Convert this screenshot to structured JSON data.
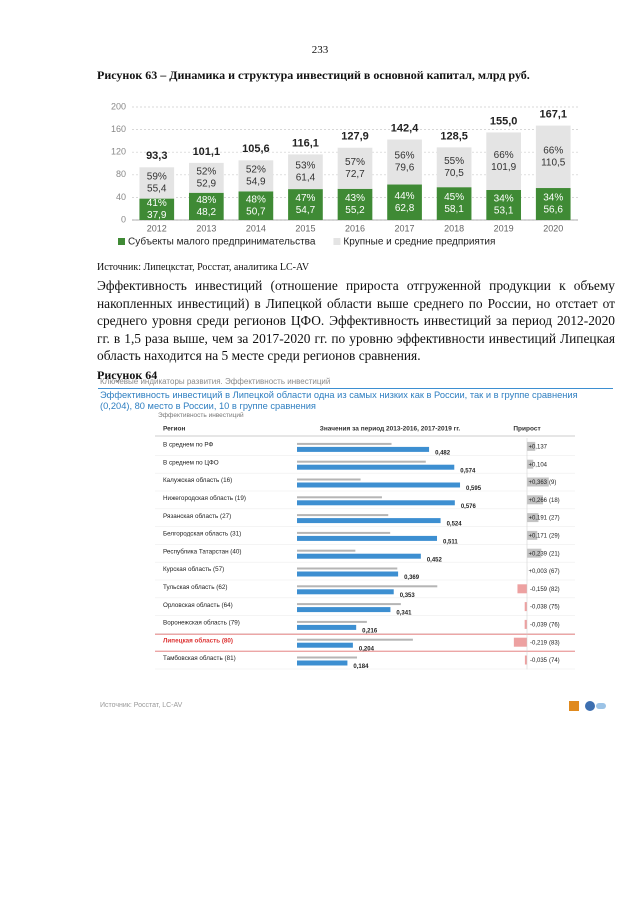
{
  "page_number": "233",
  "figure_63_caption": "Рисунок 63 – Динамика и структура инвестиций в основной капитал, млрд руб.",
  "figure_63_source": "Источник: Липецкстат, Росстат, аналитика LC-AV",
  "paragraph": "Эффективность инвестиций (отношение прироста отгруженной продукции к объему накопленных инвестиций) в Липецкой области выше среднего по России, но отстает от среднего уровня среди регионов ЦФО. Эффективность инвестиций за период 2012-2020 гг. в 1,5 раза выше, чем за 2017-2020 гг. по уровню эффективности инвестиций Липецкая область находится на 5 месте среди регионов сравнения.",
  "figure_64_caption": "Рисунок 64",
  "chart_data": [
    {
      "type": "bar",
      "stacked": true,
      "categories": [
        "2012",
        "2013",
        "2014",
        "2015",
        "2016",
        "2017",
        "2018",
        "2019",
        "2020"
      ],
      "series": [
        {
          "name": "Субъекты малого предпринимательства",
          "color": "#3f8a35",
          "values": [
            37.9,
            48.2,
            50.7,
            54.7,
            55.2,
            62.8,
            58.1,
            53.1,
            56.6
          ],
          "value_labels": [
            "37,9",
            "48,2",
            "50,7",
            "54,7",
            "55,2",
            "62,8",
            "58,1",
            "53,1",
            "56,6"
          ],
          "share_labels": [
            "41%",
            "48%",
            "48%",
            "47%",
            "43%",
            "44%",
            "45%",
            "34%",
            "34%"
          ]
        },
        {
          "name": "Крупные и средние предприятия",
          "color": "#e4e4e4",
          "values": [
            55.4,
            52.9,
            54.9,
            61.4,
            72.7,
            79.6,
            70.5,
            101.9,
            110.5
          ],
          "value_labels": [
            "55,4",
            "52,9",
            "54,9",
            "61,4",
            "72,7",
            "79,6",
            "70,5",
            "101,9",
            "110,5"
          ],
          "share_labels": [
            "59%",
            "52%",
            "52%",
            "53%",
            "57%",
            "56%",
            "55%",
            "66%",
            "66%"
          ]
        }
      ],
      "totals": [
        93.3,
        101.1,
        105.6,
        116.1,
        127.9,
        142.4,
        128.5,
        155.0,
        167.1
      ],
      "total_labels": [
        "93,3",
        "101,1",
        "105,6",
        "116,1",
        "127,9",
        "142,4",
        "128,5",
        "155,0",
        "167,1"
      ],
      "ylim": [
        0,
        200
      ],
      "yticks": [
        0,
        40,
        80,
        120,
        160,
        200
      ],
      "grid": true
    },
    {
      "type": "bar",
      "orientation": "horizontal",
      "header": "Ключевые индикаторы развития. Эффективность инвестиций",
      "title": "Эффективность инвестиций в Липецкой области одна из самых низких как в России, так и в группе сравнения (0,204), 80 место в России, 10 в группе сравнения",
      "subtitle": "Эффективность инвестиций",
      "columns": [
        "Регион",
        "Значения за период 2013-2016, 2017-2019 гг.",
        "Прирост"
      ],
      "categories": [
        "В среднем по РФ",
        "В среднем по ЦФО",
        "Калужская область (16)",
        "Нижегородская область (19)",
        "Рязанская область (27)",
        "Белгородская область (31)",
        "Республика Татарстан (40)",
        "Курская область (57)",
        "Тульская область (62)",
        "Орловская область (64)",
        "Воронежская область (79)",
        "Липецкая область (80)",
        "Тамбовская область (81)"
      ],
      "highlight_index": 11,
      "series": [
        {
          "color": "#b5b5b5",
          "values": [
            0.345,
            0.47,
            0.232,
            0.31,
            0.333,
            0.34,
            0.213,
            0.366,
            0.512,
            0.379,
            0.255,
            0.423,
            0.219
          ]
        },
        {
          "color": "#3d8fd1",
          "values": [
            0.482,
            0.574,
            0.595,
            0.576,
            0.524,
            0.511,
            0.452,
            0.369,
            0.353,
            0.341,
            0.216,
            0.204,
            0.184
          ],
          "value_labels": [
            "0,482",
            "0,574",
            "0,595",
            "0,576",
            "0,524",
            "0,511",
            "0,452",
            "0,369",
            "0,353",
            "0,341",
            "0,216",
            "0,204",
            "0,184"
          ]
        }
      ],
      "growth": {
        "positive_color": "#b5b5b5",
        "negative_color": "#e88a8a",
        "values": [
          0.137,
          0.104,
          0.363,
          0.266,
          0.191,
          0.171,
          0.239,
          0.003,
          -0.159,
          -0.038,
          -0.039,
          -0.219,
          -0.035
        ],
        "value_labels": [
          "+0,137",
          "+0,104",
          "+0,363",
          "+0,266",
          "+0,191",
          "+0,171",
          "+0,239",
          "+0,003",
          "-0,159",
          "-0,038",
          "-0,039",
          "-0,219",
          "-0,035"
        ],
        "rank_labels": [
          null,
          null,
          "(9)",
          "(18)",
          "(27)",
          "(29)",
          "(21)",
          "(67)",
          "(82)",
          "(75)",
          "(76)",
          "(83)",
          "(74)"
        ]
      },
      "source": "Источник: Росстат, LC-AV"
    }
  ]
}
